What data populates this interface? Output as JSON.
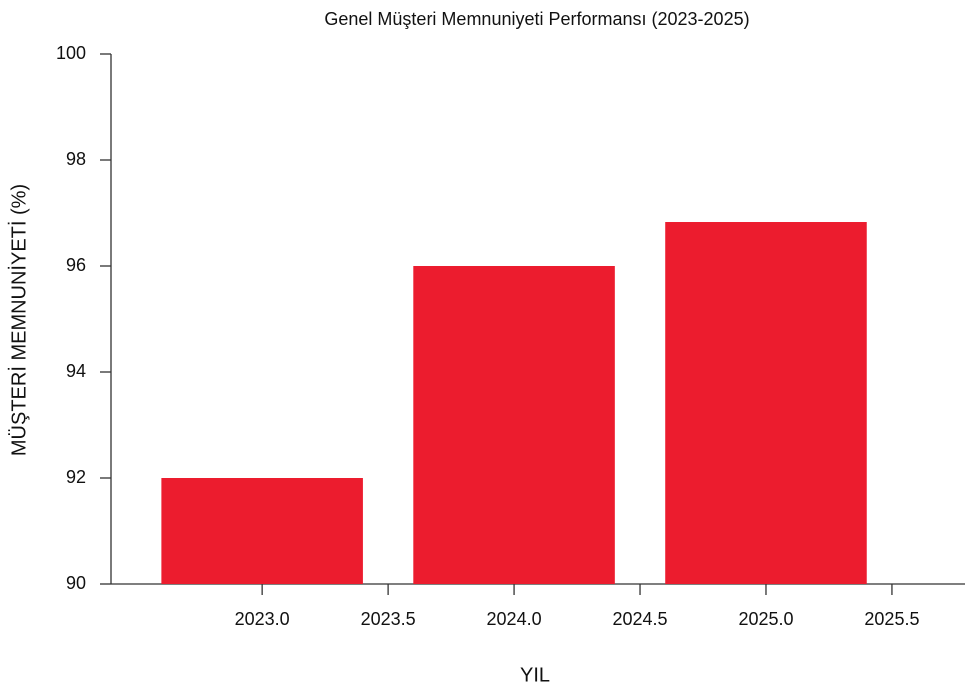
{
  "chart_data": {
    "type": "bar",
    "title": "Genel Müşteri Memnuniyeti Performansı (2023-2025)",
    "xlabel": "YIL",
    "ylabel": "MÜŞTERİ MEMNUNİYETİ (%)",
    "x": [
      2023,
      2024,
      2025
    ],
    "values": [
      92,
      96,
      96.83
    ],
    "color": "#ec1c2e",
    "xlim": [
      2022.4,
      2025.79
    ],
    "xticks": [
      {
        "value": 2023,
        "label": "2023.0"
      },
      2023.5,
      {
        "value": 2024,
        "label": "2024.0"
      },
      2024.5,
      {
        "value": 2025,
        "label": "2025.0"
      },
      2025.5
    ],
    "ylim": [
      90,
      100
    ],
    "yticks": [
      90,
      92,
      94,
      96,
      98,
      100
    ],
    "grid": false
  }
}
